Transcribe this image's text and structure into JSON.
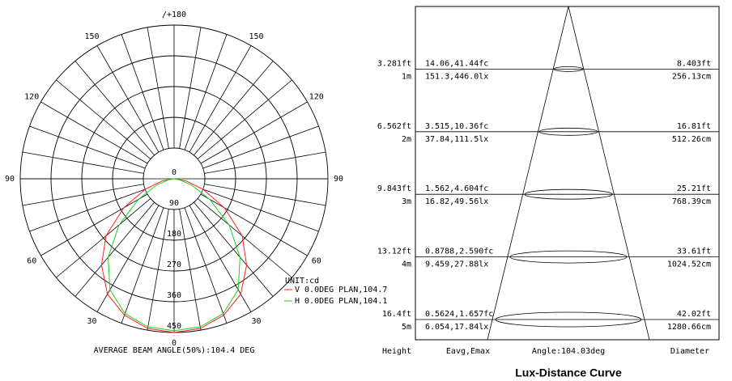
{
  "chart_data": [
    {
      "type": "polar",
      "caption": "AVERAGE BEAM ANGLE(50%):104.4 DEG",
      "unit_label": "UNIT:cd",
      "x": [
        -90,
        -80,
        -70,
        -60,
        -50,
        -40,
        -30,
        -20,
        -10,
        0,
        10,
        20,
        30,
        40,
        50,
        60,
        70,
        80,
        90
      ],
      "series": [
        {
          "name": "V 0.0DEG PLAN,104.7",
          "color": "#ff2020",
          "values": [
            0,
            35,
            90,
            170,
            260,
            330,
            390,
            425,
            445,
            450,
            445,
            425,
            390,
            330,
            260,
            170,
            90,
            35,
            0
          ]
        },
        {
          "name": "H 0.0DEG PLAN,104.1",
          "color": "#20d020",
          "values": [
            0,
            15,
            55,
            120,
            210,
            300,
            375,
            420,
            440,
            445,
            440,
            420,
            375,
            300,
            210,
            120,
            55,
            15,
            0
          ]
        }
      ],
      "ylim": [
        0,
        450
      ],
      "yticks": [
        0,
        90,
        180,
        270,
        360,
        450
      ],
      "xticks": [
        {
          "value": 180,
          "label": "/+180"
        },
        {
          "value": -150,
          "label": "150"
        },
        150,
        {
          "value": -120,
          "label": "120"
        },
        120,
        {
          "value": -90,
          "label": "90"
        },
        90,
        {
          "value": -60,
          "label": "60"
        },
        60,
        {
          "value": -30,
          "label": "30"
        },
        30,
        0
      ]
    },
    {
      "type": "lux-distance",
      "title": "Lux-Distance Curve",
      "headers": [
        "Height",
        "Eavg,Emax",
        "Angle:104.03deg",
        "Diameter"
      ],
      "rows": [
        [
          "3.281ft",
          "1m",
          "14.06,41.44fc",
          "151.3,446.0lx",
          "8.403ft",
          "256.13cm"
        ],
        [
          "6.562ft",
          "2m",
          "3.515,10.36fc",
          "37.84,111.5lx",
          "16.81ft",
          "512.26cm"
        ],
        [
          "9.843ft",
          "3m",
          "1.562,4.604fc",
          "16.82,49.56lx",
          "25.21ft",
          "768.39cm"
        ],
        [
          "13.12ft",
          "4m",
          "0.8788,2.590fc",
          "9.459,27.88lx",
          "33.61ft",
          "1024.52cm"
        ],
        [
          "16.4ft",
          "5m",
          "0.5624,1.657fc",
          "6.054,17.84lx",
          "42.02ft",
          "1280.66cm"
        ]
      ]
    }
  ]
}
